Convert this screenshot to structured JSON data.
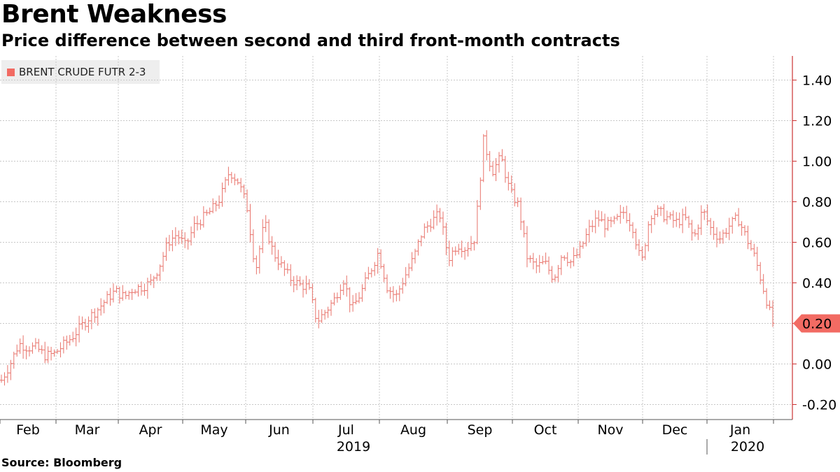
{
  "title": "Brent Weakness",
  "subtitle": "Price difference between second and third front-month contracts",
  "source": "Source: Bloomberg",
  "colors": {
    "series": "#e8736b",
    "tag": "#f26b63",
    "grid": "#c8c8c8",
    "axis": "#cc3333"
  },
  "chart_data": {
    "type": "ohlc",
    "legend": [
      "BRENT CRUDE FUTR 2-3"
    ],
    "y_ticks": [
      "1.40",
      "1.20",
      "1.00",
      "0.80",
      "0.60",
      "0.40",
      "0.20",
      "0.00",
      "-0.20"
    ],
    "y_tick_values": [
      1.4,
      1.2,
      1.0,
      0.8,
      0.6,
      0.4,
      0.2,
      0.0,
      -0.2
    ],
    "ylim": [
      -0.28,
      1.52
    ],
    "x_months": [
      "Feb",
      "Mar",
      "Apr",
      "May",
      "Jun",
      "Jul",
      "Aug",
      "Sep",
      "Oct",
      "Nov",
      "Dec",
      "Jan"
    ],
    "x_years": [
      "2019",
      "2020"
    ],
    "last_value_label": "0.20",
    "last_value": 0.2,
    "weekly_closes": [
      -0.08,
      0.0,
      0.1,
      0.08,
      0.08,
      0.04,
      0.05,
      0.09,
      0.13,
      0.18,
      0.23,
      0.27,
      0.32,
      0.36,
      0.33,
      0.37,
      0.38,
      0.4,
      0.48,
      0.6,
      0.64,
      0.58,
      0.68,
      0.72,
      0.76,
      0.82,
      0.95,
      0.9,
      0.78,
      0.46,
      0.7,
      0.55,
      0.48,
      0.42,
      0.39,
      0.38,
      0.21,
      0.26,
      0.32,
      0.42,
      0.27,
      0.35,
      0.45,
      0.55,
      0.38,
      0.33,
      0.43,
      0.52,
      0.65,
      0.7,
      0.74,
      0.52,
      0.59,
      0.57,
      0.62,
      1.1,
      0.95,
      1.02,
      0.85,
      0.78,
      0.52,
      0.48,
      0.5,
      0.42,
      0.55,
      0.5,
      0.56,
      0.66,
      0.72,
      0.68,
      0.7,
      0.75,
      0.68,
      0.49,
      0.74,
      0.75,
      0.72,
      0.7,
      0.72,
      0.62,
      0.76,
      0.66,
      0.62,
      0.68,
      0.72,
      0.62,
      0.52,
      0.36,
      0.2
    ]
  }
}
